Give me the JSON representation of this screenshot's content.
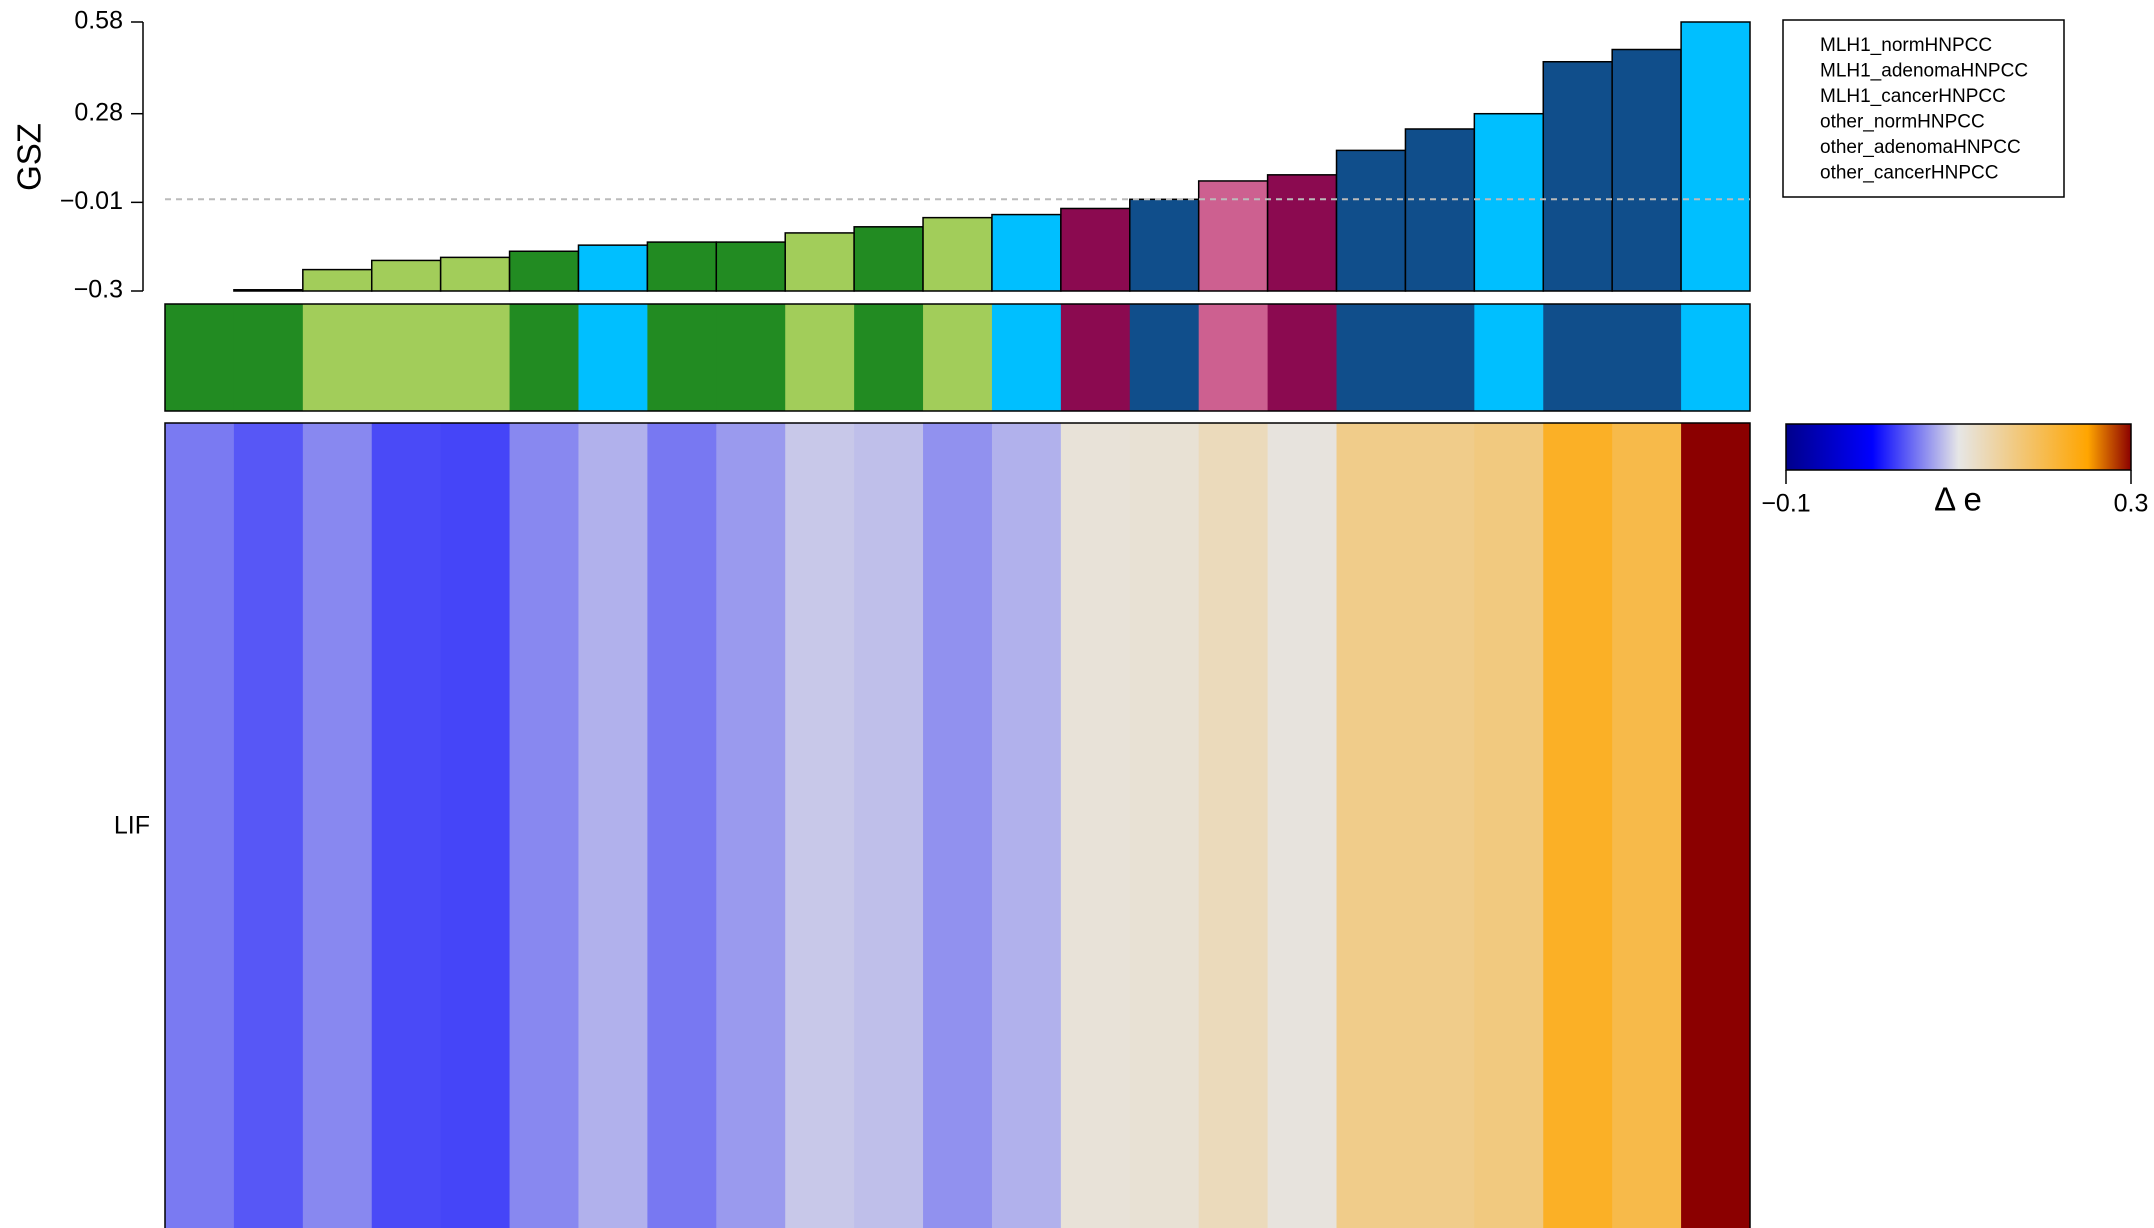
{
  "chart_data": {
    "type": "bar",
    "ylabel": "GSZ",
    "ylim": [
      -0.3,
      0.58
    ],
    "yticks": [
      0.58,
      0.28,
      {
        "value": -0.01,
        "label": "−0.01"
      },
      {
        "value": -0.3,
        "label": "−0.3"
      }
    ],
    "hline": 0,
    "groups": [
      {
        "name": "MLH1_normHNPCC",
        "color": "#228b22"
      },
      {
        "name": "MLH1_adenomaHNPCC",
        "color": "#8b0a50"
      },
      {
        "name": "MLH1_cancerHNPCC",
        "color": "#104e8b"
      },
      {
        "name": "other_normHNPCC",
        "color": "#a2cd5a"
      },
      {
        "name": "other_adenomaHNPCC",
        "color": "#cd6090"
      },
      {
        "name": "other_cancerHNPCC",
        "color": "#00bfff"
      }
    ],
    "bar_groups": [
      0,
      0,
      3,
      3,
      3,
      0,
      5,
      0,
      0,
      3,
      0,
      3,
      5,
      1,
      2,
      4,
      1,
      2,
      2,
      5,
      2,
      2,
      5
    ],
    "values": [
      -0.3,
      -0.296,
      -0.23,
      -0.2,
      -0.19,
      -0.17,
      -0.15,
      -0.14,
      -0.14,
      -0.11,
      -0.09,
      -0.06,
      -0.05,
      -0.03,
      0.0,
      0.06,
      0.08,
      0.16,
      0.23,
      0.28,
      0.45,
      0.49,
      0.58
    ],
    "heatmap": {
      "row_label": "LIF",
      "values": [
        0.053,
        0.038,
        0.059,
        0.032,
        0.03,
        0.059,
        0.077,
        0.052,
        0.067,
        0.087,
        0.083,
        0.063,
        0.077,
        0.109,
        0.112,
        0.128,
        0.106,
        0.16,
        0.16,
        0.167,
        0.225,
        0.202,
        0.3
      ],
      "colorbar": {
        "label": "Δ e",
        "lim": [
          -0.1,
          0.3
        ],
        "ticks": [
          {
            "value": -0.1,
            "label": "−0.1"
          },
          0.3
        ],
        "stops": [
          {
            "value": -0.1,
            "color": "#00008b"
          },
          {
            "value": 0,
            "color": "#0000ff"
          },
          {
            "value": 0.1,
            "color": "#e6e6e6"
          },
          {
            "value": 0.25,
            "color": "#ffa500"
          },
          {
            "value": 0.3,
            "color": "#8b0000"
          }
        ]
      }
    }
  }
}
